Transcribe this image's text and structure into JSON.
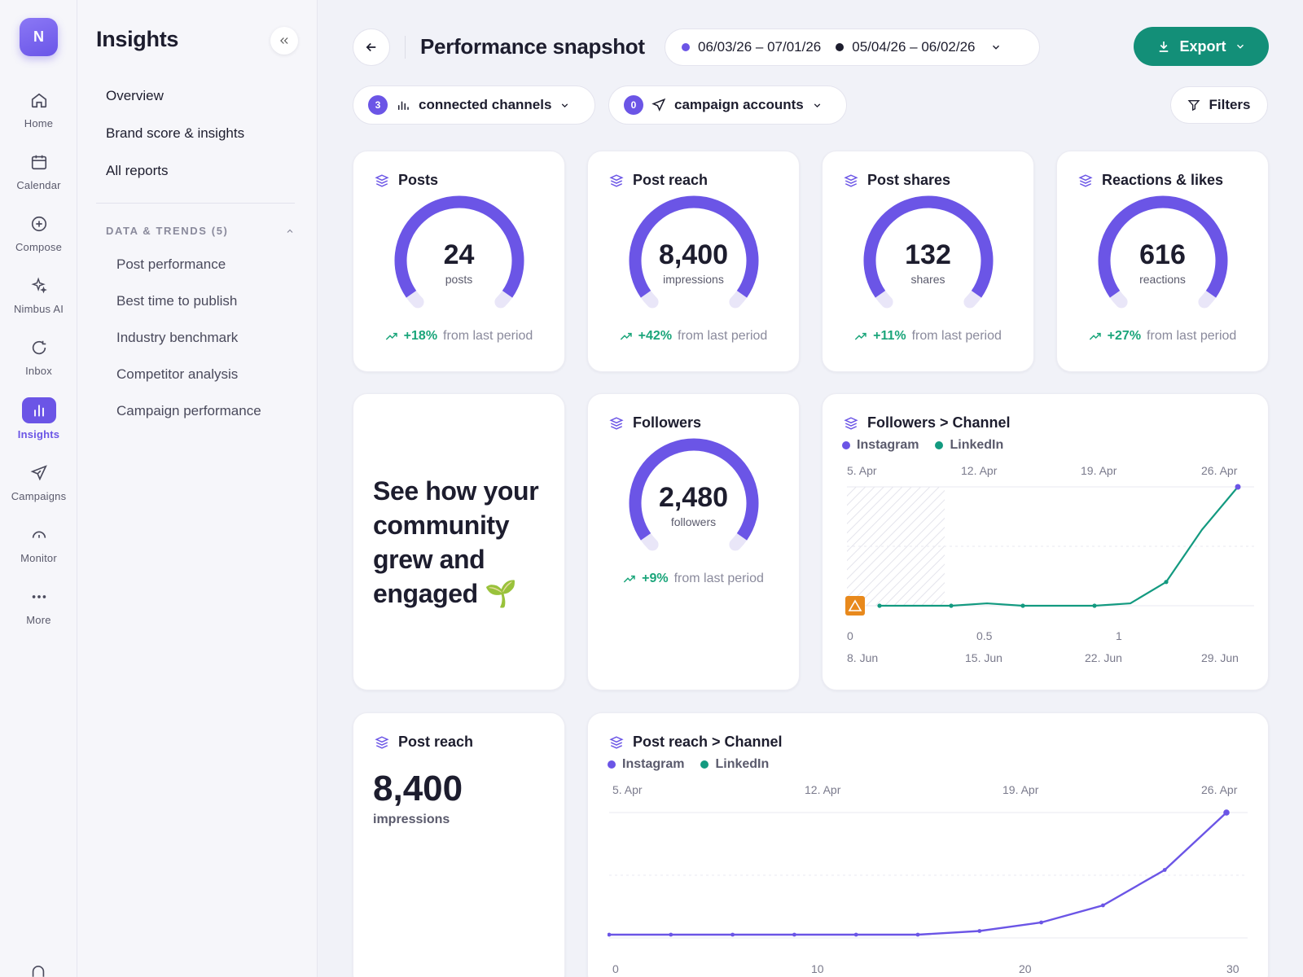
{
  "rail": {
    "logo": "N",
    "items": [
      {
        "label": "Home",
        "icon": "home-icon"
      },
      {
        "label": "Calendar",
        "icon": "calendar-icon"
      },
      {
        "label": "Compose",
        "icon": "plus-circle-icon"
      },
      {
        "label": "Nimbus AI",
        "icon": "sparkle-icon"
      },
      {
        "label": "Inbox",
        "icon": "refresh-icon"
      },
      {
        "label": "Insights",
        "icon": "bar-chart-icon",
        "active": true
      },
      {
        "label": "Campaigns",
        "icon": "send-icon"
      },
      {
        "label": "Monitor",
        "icon": "gauge-icon"
      },
      {
        "label": "More",
        "icon": "more-icon"
      }
    ]
  },
  "sidebar": {
    "title": "Insights",
    "nav": [
      "Overview",
      "Brand score & insights",
      "All reports"
    ],
    "section_label": "DATA & TRENDS (5)",
    "sub_items": [
      "Post performance",
      "Best time to publish",
      "Industry benchmark",
      "Competitor analysis",
      "Campaign performance"
    ]
  },
  "header": {
    "title": "Performance snapshot",
    "range_current": "06/03/26 – 07/01/26",
    "range_previous": "05/04/26 – 06/02/26",
    "export_label": "Export"
  },
  "filters": {
    "channels_count": "3",
    "channels_label": "connected channels",
    "accounts_count": "0",
    "accounts_label": "campaign accounts",
    "filters_label": "Filters"
  },
  "colors": {
    "accent": "#6b55e6",
    "instagram": "#6b55e6",
    "linkedin": "#139a80",
    "positive": "#1aa57a",
    "export": "#138f78",
    "warning": "#e8891c"
  },
  "metrics": [
    {
      "title": "Posts",
      "value": "24",
      "unit": "posts",
      "delta": "+18%",
      "delta_suffix": "from last period"
    },
    {
      "title": "Post reach",
      "value": "8,400",
      "unit": "impressions",
      "delta": "+42%",
      "delta_suffix": "from last period"
    },
    {
      "title": "Post shares",
      "value": "132",
      "unit": "shares",
      "delta": "+11%",
      "delta_suffix": "from last period"
    },
    {
      "title": "Reactions & likes",
      "value": "616",
      "unit": "reactions",
      "delta": "+27%",
      "delta_suffix": "from last period"
    }
  ],
  "promo": {
    "text": "See how your community grew and engaged",
    "emoji": "🌱"
  },
  "followers": {
    "title": "Followers",
    "value": "2,480",
    "unit": "followers",
    "delta": "+9%",
    "delta_suffix": "from last period"
  },
  "reach_summary": {
    "title": "Post reach",
    "value": "8,400",
    "unit": "impressions"
  },
  "chart_data": [
    {
      "type": "line",
      "title": "Followers > Channel",
      "legend": [
        "Instagram",
        "LinkedIn"
      ],
      "top_ticks": [
        "5. Apr",
        "12. Apr",
        "19. Apr",
        "26. Apr"
      ],
      "bottom_ticks": [
        "8. Jun",
        "15. Jun",
        "22. Jun",
        "29. Jun"
      ],
      "y_ticks": [
        "0",
        "0.5",
        "1"
      ],
      "x": [
        0,
        1,
        2,
        3,
        4,
        5,
        6,
        7,
        8,
        9,
        10
      ],
      "series": [
        {
          "name": "LinkedIn",
          "values": [
            0,
            0,
            0,
            0.01,
            0,
            0,
            0,
            0.01,
            0.1,
            0.32,
            0.5
          ]
        }
      ],
      "ylim": [
        0,
        0.5
      ],
      "note": "shaded region with warning marker at start",
      "grid": true
    },
    {
      "type": "line",
      "title": "Post reach > Channel",
      "legend": [
        "Instagram",
        "LinkedIn"
      ],
      "top_ticks": [
        "5. Apr",
        "12. Apr",
        "19. Apr",
        "26. Apr"
      ],
      "bottom_ticks": [
        "0",
        "10",
        "20",
        "30"
      ],
      "x": [
        0,
        3,
        6,
        9,
        12,
        15,
        18,
        21,
        24,
        27,
        30
      ],
      "series": [
        {
          "name": "Instagram",
          "values": [
            0,
            0,
            0,
            0,
            0,
            0,
            0.03,
            0.1,
            0.24,
            0.53,
            1
          ]
        }
      ],
      "ylim": [
        0,
        1
      ],
      "grid": true
    }
  ]
}
